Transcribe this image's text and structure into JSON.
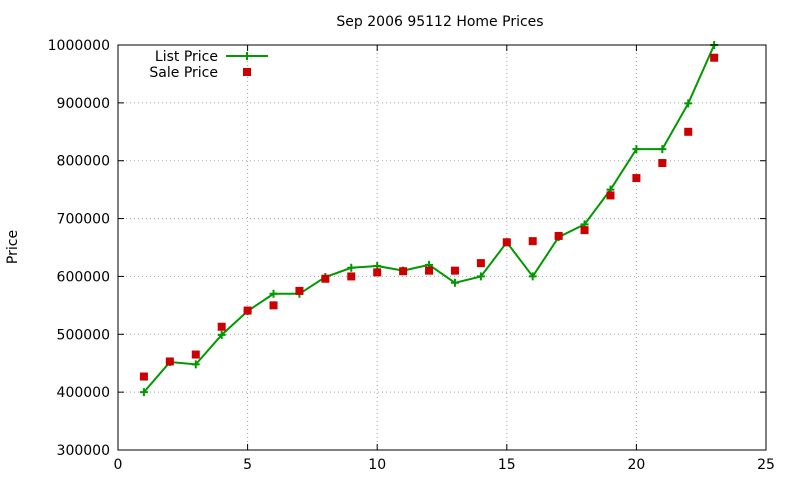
{
  "chart_data": {
    "type": "scatter",
    "title": "Sep 2006 95112 Home Prices",
    "xlabel": "",
    "ylabel": "Price",
    "xlim": [
      0,
      25
    ],
    "ylim": [
      300000,
      1000000
    ],
    "xticks": [
      "0",
      "5",
      "10",
      "15",
      "20",
      "25"
    ],
    "yticks": [
      "300000",
      "400000",
      "500000",
      "600000",
      "700000",
      "800000",
      "900000",
      "1000000"
    ],
    "grid": true,
    "legend_position": "top-left",
    "series": [
      {
        "name": "List Price",
        "style": "line-with-plus-markers",
        "color": "#009900",
        "x": [
          1,
          2,
          3,
          4,
          5,
          6,
          7,
          8,
          9,
          10,
          11,
          12,
          13,
          14,
          15,
          16,
          17,
          18,
          19,
          20,
          21,
          22,
          23
        ],
        "y": [
          400000,
          452000,
          448000,
          499000,
          540000,
          570000,
          570000,
          599000,
          615000,
          618000,
          610000,
          620000,
          589000,
          600000,
          659000,
          600000,
          668000,
          690000,
          750000,
          820000,
          820000,
          899000,
          1000000
        ]
      },
      {
        "name": "Sale Price",
        "style": "square-markers",
        "color": "#cc0000",
        "x": [
          1,
          2,
          3,
          4,
          5,
          6,
          7,
          8,
          9,
          10,
          11,
          12,
          13,
          14,
          15,
          16,
          17,
          18,
          19,
          20,
          21,
          22,
          23
        ],
        "y": [
          427000,
          453000,
          465000,
          513000,
          541000,
          550000,
          575000,
          596000,
          600000,
          607000,
          609000,
          610000,
          610000,
          623000,
          659000,
          661000,
          670000,
          680000,
          740000,
          770000,
          796000,
          850000,
          978000
        ]
      }
    ]
  }
}
